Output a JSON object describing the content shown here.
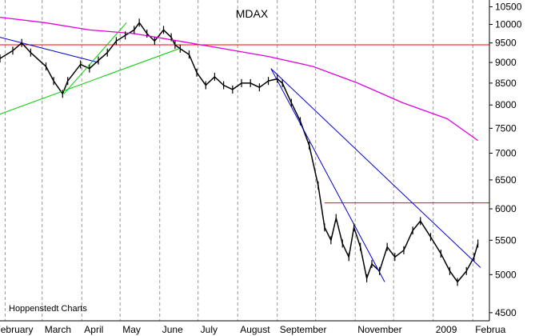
{
  "chart_data": {
    "type": "line",
    "title": "MDAX",
    "footer": "Hoppenstedt Charts",
    "xlabel": "",
    "ylabel": "",
    "log_scale": true,
    "ylim": [
      4400,
      10700
    ],
    "y_ticks": [
      10500,
      10000,
      9500,
      9000,
      8500,
      8000,
      7500,
      7000,
      6500,
      6000,
      5500,
      5000,
      4500
    ],
    "x_months": [
      "February",
      "March",
      "April",
      "May",
      "June",
      "July",
      "August",
      "September",
      "November",
      "2009",
      "Februa"
    ],
    "grid": "vertical dashed",
    "colors": {
      "price": "#000000",
      "moving_average": "#e000e0",
      "trend_blue": "#0000cc",
      "trend_green": "#00cc00",
      "horizontal_red": "#ff0000"
    },
    "horizontal_lines": [
      9450,
      6100
    ],
    "series": [
      {
        "kind": "price",
        "x": [
          "2008-01-28",
          "2008-02-07",
          "2008-02-14",
          "2008-02-21",
          "2008-03-04",
          "2008-03-10",
          "2008-03-17",
          "2008-03-21",
          "2008-03-31",
          "2008-04-07",
          "2008-04-14",
          "2008-04-21",
          "2008-04-28",
          "2008-05-05",
          "2008-05-12",
          "2008-05-16",
          "2008-05-22",
          "2008-05-28",
          "2008-06-04",
          "2008-06-10",
          "2008-06-13",
          "2008-06-17",
          "2008-06-24",
          "2008-06-30",
          "2008-07-07",
          "2008-07-14",
          "2008-07-21",
          "2008-07-28",
          "2008-08-04",
          "2008-08-11",
          "2008-08-18",
          "2008-08-25",
          "2008-09-01",
          "2008-09-05",
          "2008-09-12",
          "2008-09-19",
          "2008-09-26",
          "2008-10-03",
          "2008-10-08",
          "2008-10-13",
          "2008-10-17",
          "2008-10-22",
          "2008-10-27",
          "2008-10-31",
          "2008-11-05",
          "2008-11-10",
          "2008-11-14",
          "2008-11-20",
          "2008-11-26",
          "2008-12-02",
          "2008-12-09",
          "2008-12-16",
          "2008-12-22",
          "2008-12-30",
          "2009-01-07",
          "2009-01-14",
          "2009-01-20",
          "2009-01-27",
          "2009-02-02",
          "2009-02-05"
        ],
        "y": [
          9100,
          9300,
          9500,
          9250,
          8900,
          8550,
          8250,
          8550,
          8950,
          8850,
          9050,
          9250,
          9550,
          9700,
          9850,
          10050,
          9750,
          9550,
          9850,
          9650,
          9450,
          9350,
          9200,
          8750,
          8450,
          8650,
          8450,
          8350,
          8500,
          8500,
          8400,
          8550,
          8600,
          8500,
          8050,
          7650,
          7150,
          6400,
          5700,
          5500,
          5850,
          5450,
          5250,
          5700,
          5400,
          4950,
          5150,
          5050,
          5400,
          5250,
          5350,
          5650,
          5800,
          5550,
          5300,
          5050,
          4900,
          5050,
          5250,
          5450
        ]
      },
      {
        "kind": "moving_average",
        "x": [
          "2008-01-28",
          "2008-03-03",
          "2008-04-07",
          "2008-05-12",
          "2008-06-16",
          "2008-07-21",
          "2008-08-25",
          "2008-09-29",
          "2008-11-03",
          "2008-12-08",
          "2009-01-12",
          "2009-02-05"
        ],
        "y": [
          10200,
          10050,
          9850,
          9750,
          9550,
          9350,
          9150,
          8900,
          8500,
          8050,
          7700,
          7250
        ]
      },
      {
        "kind": "trend_blue",
        "x": [
          "2008-01-28",
          "2008-04-14"
        ],
        "y": [
          9650,
          9000
        ]
      },
      {
        "kind": "trend_blue",
        "x": [
          "2008-08-27",
          "2008-11-24"
        ],
        "y": [
          8850,
          4900
        ]
      },
      {
        "kind": "trend_blue",
        "x": [
          "2008-08-27",
          "2009-02-07"
        ],
        "y": [
          8850,
          5100
        ]
      },
      {
        "kind": "trend_green",
        "x": [
          "2008-01-28",
          "2008-06-16"
        ],
        "y": [
          7800,
          9350
        ]
      },
      {
        "kind": "trend_green",
        "x": [
          "2008-03-18",
          "2008-05-06"
        ],
        "y": [
          8250,
          10050
        ]
      }
    ]
  }
}
